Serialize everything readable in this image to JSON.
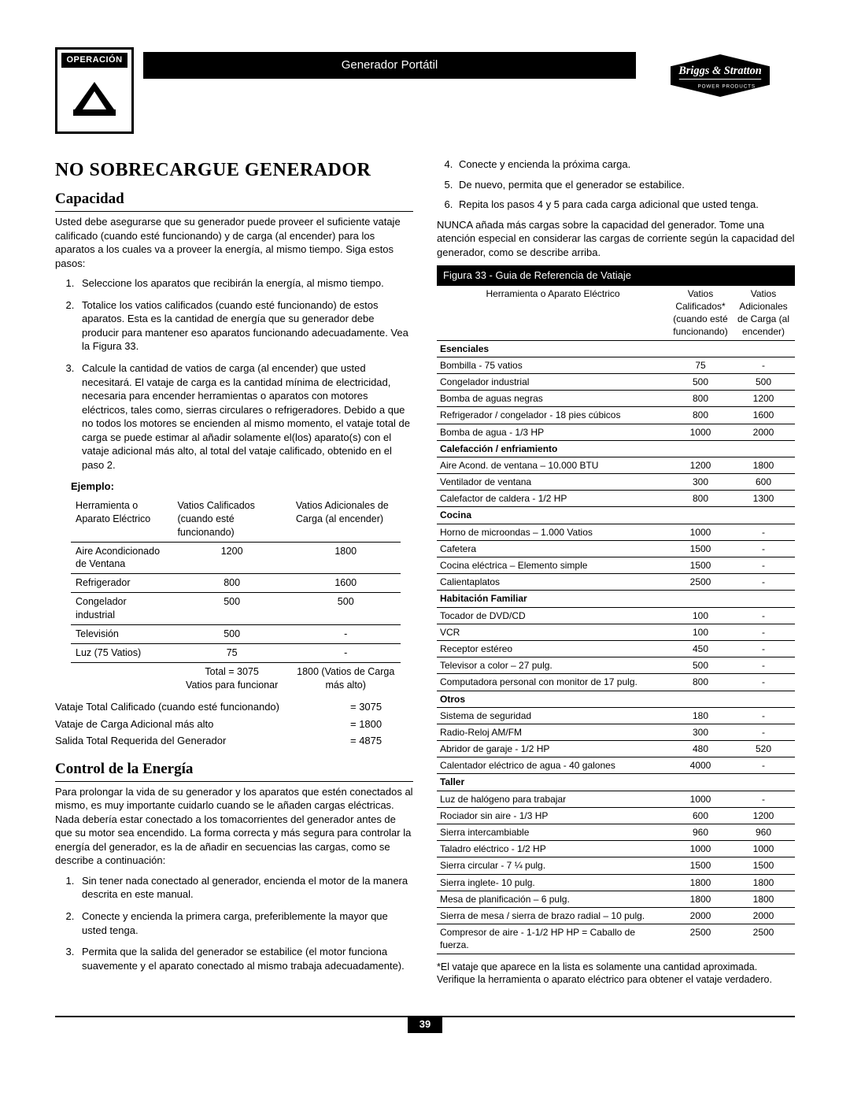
{
  "header": {
    "badge_label": "OPERACIÓN",
    "title_strip": "Generador Portátil",
    "brand_top": "Briggs & Stratton",
    "brand_sub": "POWER PRODUCTS"
  },
  "main_title": "No Sobrecargue Generador",
  "sections": {
    "capacidad": {
      "title": "Capacidad",
      "intro": "Usted debe asegurarse que su generador puede proveer el suficiente vataje calificado (cuando esté funcionando) y de carga (al encender) para los aparatos a los cuales va a proveer la energía, al mismo tiempo. Siga estos pasos:",
      "steps": [
        "Seleccione los aparatos que recibirán la energía, al mismo tiempo.",
        "Totalice los vatios calificados (cuando esté funcionando) de estos aparatos. Esta es la cantidad de energía que su generador debe producir para mantener eso aparatos funcionando adecuadamente. Vea la Figura 33.",
        "Calcule la cantidad de vatios de carga (al encender) que usted necesitará. El vataje de carga es la cantidad mínima de electricidad, necesaria para encender herramientas o aparatos con motores eléctricos, tales como, sierras circulares o refrigeradores. Debido a que no todos los motores se encienden al mismo momento, el vataje total de carga se puede estimar al añadir solamente el(los) aparato(s) con el vataje adicional más alto, al total del vataje calificado, obtenido en el paso 2."
      ],
      "ejemplo_label": "Ejemplo:",
      "table_headers": [
        "Herramienta o Aparato Eléctrico",
        "Vatios Calificados (cuando esté funcionando)",
        "Vatios Adicionales de Carga (al encender)"
      ],
      "table_rows": [
        {
          "name": "Aire Acondicionado de Ventana",
          "run": "1200",
          "start": "1800"
        },
        {
          "name": "Refrigerador",
          "run": "800",
          "start": "1600"
        },
        {
          "name": "Congelador industrial",
          "run": "500",
          "start": "500"
        },
        {
          "name": "Televisión",
          "run": "500",
          "start": "-"
        },
        {
          "name": "Luz (75 Vatios)",
          "run": "75",
          "start": "-"
        }
      ],
      "total_label": "Total = 3075",
      "total_surge_label": "Vatios para funcionar",
      "total_surge_val": "1800 (Vatios de Carga más alto)",
      "calc": [
        {
          "label": "Vataje Total Calificado (cuando esté funcionando)",
          "val": "= 3075"
        },
        {
          "label": "Vataje de Carga Adicional más alto",
          "val": "= 1800"
        },
        {
          "label": "Salida Total Requerida del Generador",
          "val": "= 4875"
        }
      ]
    },
    "control": {
      "title": "Control de la Energía",
      "intro": "Para prolongar la vida de su generador y los aparatos que estén conectados al mismo, es muy importante cuidarlo cuando se le añaden cargas eléctricas. Nada debería estar conectado a los tomacorrientes del generador antes de que su motor sea encendido. La forma correcta y más segura para controlar la energía del generador, es la de añadir en secuencias las cargas, como se describe a continuación:",
      "steps": [
        "Sin tener nada conectado al generador, encienda el motor de la manera descrita en este manual.",
        "Conecte y encienda la primera carga, preferiblemente la mayor que usted tenga.",
        "Permita que la salida del generador se estabilice (el motor funciona suavemente y el aparato conectado al mismo trabaja adecuadamente)."
      ]
    },
    "control_right": {
      "steps": [
        "Conecte y encienda la próxima carga.",
        "De nuevo, permita que el generador se estabilice.",
        "Repita los pasos 4 y 5 para cada carga adicional que usted tenga."
      ],
      "note": "NUNCA añada más cargas sobre la capacidad del generador. Tome una atención especial en considerar las cargas de corriente según la capacidad del generador, como se describe arriba."
    }
  },
  "figure": {
    "caption": "Figura 33 - Guia de Referencia de Vatiaje",
    "headers": [
      "Herramienta o Aparato Eléctrico",
      "Vatios Calificados* (cuando esté funcionando)",
      "Vatios Adicionales de Carga (al encender)"
    ],
    "groups": [
      {
        "cat": "Esenciales",
        "rows": [
          {
            "n": "Bombilla - 75 vatios",
            "r": "75",
            "s": "-"
          },
          {
            "n": "Congelador industrial",
            "r": "500",
            "s": "500"
          },
          {
            "n": "Bomba de aguas negras",
            "r": "800",
            "s": "1200"
          },
          {
            "n": "Refrigerador / congelador - 18 pies cúbicos",
            "r": "800",
            "s": "1600"
          },
          {
            "n": "Bomba de agua - 1/3 HP",
            "r": "1000",
            "s": "2000"
          }
        ]
      },
      {
        "cat": "Calefacción / enfriamiento",
        "rows": [
          {
            "n": "Aire Acond. de ventana – 10.000 BTU",
            "r": "1200",
            "s": "1800"
          },
          {
            "n": "Ventilador de ventana",
            "r": "300",
            "s": "600"
          },
          {
            "n": "Calefactor de caldera  - 1/2 HP",
            "r": "800",
            "s": "1300"
          }
        ]
      },
      {
        "cat": "Cocina",
        "rows": [
          {
            "n": "Horno de microondas – 1.000 Vatios",
            "r": "1000",
            "s": "-"
          },
          {
            "n": "Cafetera",
            "r": "1500",
            "s": "-"
          },
          {
            "n": "Cocina eléctrica – Elemento simple",
            "r": "1500",
            "s": "-"
          },
          {
            "n": "Calientaplatos",
            "r": "2500",
            "s": "-"
          }
        ]
      },
      {
        "cat": "Habitación Familiar",
        "rows": [
          {
            "n": "Tocador de DVD/CD",
            "r": "100",
            "s": "-"
          },
          {
            "n": "VCR",
            "r": "100",
            "s": "-"
          },
          {
            "n": "Receptor estéreo",
            "r": "450",
            "s": "-"
          },
          {
            "n": "Televisor a color – 27 pulg.",
            "r": "500",
            "s": "-"
          },
          {
            "n": "Computadora personal con monitor de 17 pulg.",
            "r": "800",
            "s": "-"
          }
        ]
      },
      {
        "cat": "Otros",
        "rows": [
          {
            "n": "Sistema de seguridad",
            "r": "180",
            "s": "-"
          },
          {
            "n": "Radio-Reloj AM/FM",
            "r": "300",
            "s": "-"
          },
          {
            "n": "Abridor de garaje - 1/2 HP",
            "r": "480",
            "s": "520"
          },
          {
            "n": "Calentador eléctrico de agua - 40 galones",
            "r": "4000",
            "s": "-"
          }
        ]
      },
      {
        "cat": "Taller",
        "rows": [
          {
            "n": "Luz de halógeno para trabajar",
            "r": "1000",
            "s": "-"
          },
          {
            "n": "Rociador sin aire - 1/3 HP",
            "r": "600",
            "s": "1200"
          },
          {
            "n": "Sierra intercambiable",
            "r": "960",
            "s": "960"
          },
          {
            "n": "Taladro eléctrico - 1/2 HP",
            "r": "1000",
            "s": "1000"
          },
          {
            "n": "Sierra circular - 7 ¼ pulg.",
            "r": "1500",
            "s": "1500"
          },
          {
            "n": "Sierra inglete- 10 pulg.",
            "r": "1800",
            "s": "1800"
          },
          {
            "n": "Mesa de planificación – 6 pulg.",
            "r": "1800",
            "s": "1800"
          },
          {
            "n": "Sierra de mesa / sierra de brazo radial – 10 pulg.",
            "r": "2000",
            "s": "2000"
          },
          {
            "n": "Compresor de aire - 1-1/2 HP HP = Caballo de fuerza.",
            "r": "2500",
            "s": "2500"
          }
        ]
      }
    ],
    "footnote": "*El vataje que aparece en la lista es solamente una cantidad aproximada. Verifique la herramienta o aparato eléctrico para obtener el vataje verdadero."
  },
  "page_number": "39"
}
